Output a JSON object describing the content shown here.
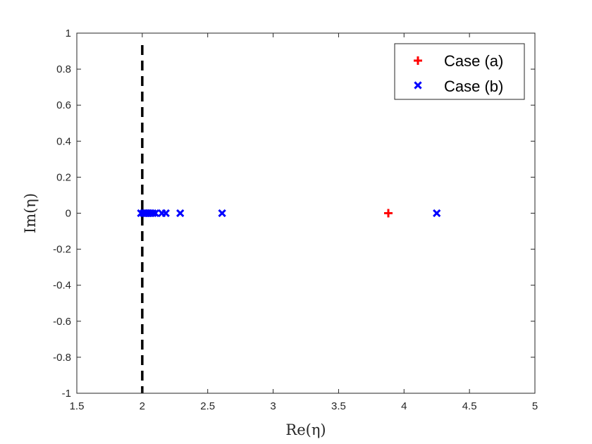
{
  "chart_data": {
    "type": "scatter",
    "xlabel": "Re(η)",
    "ylabel": "Im(η)",
    "xlim": [
      1.5,
      5
    ],
    "ylim": [
      -1,
      1
    ],
    "x_ticks": [
      "1.5",
      "2",
      "2.5",
      "3",
      "3.5",
      "4",
      "4.5",
      "5"
    ],
    "y_ticks": [
      "-1",
      "-0.8",
      "-0.6",
      "-0.4",
      "-0.2",
      "0",
      "0.2",
      "0.4",
      "0.6",
      "0.8",
      "1"
    ],
    "reference_line": {
      "x": 2,
      "style": "dashed",
      "color": "#000000"
    },
    "grid": false,
    "legend_position": "top-right",
    "series": [
      {
        "name": "Case (a)",
        "marker": "plus",
        "color": "#ff0000",
        "points": [
          {
            "x": 3.88,
            "y": 0
          }
        ]
      },
      {
        "name": "Case (b)",
        "marker": "cross",
        "color": "#0000ff",
        "points": [
          {
            "x": 1.99,
            "y": 0
          },
          {
            "x": 2.01,
            "y": 0
          },
          {
            "x": 2.02,
            "y": 0
          },
          {
            "x": 2.03,
            "y": 0
          },
          {
            "x": 2.04,
            "y": 0
          },
          {
            "x": 2.05,
            "y": 0
          },
          {
            "x": 2.065,
            "y": 0
          },
          {
            "x": 2.08,
            "y": 0
          },
          {
            "x": 2.1,
            "y": 0
          },
          {
            "x": 2.15,
            "y": 0
          },
          {
            "x": 2.18,
            "y": 0
          },
          {
            "x": 2.29,
            "y": 0
          },
          {
            "x": 2.61,
            "y": 0
          },
          {
            "x": 4.25,
            "y": 0
          }
        ]
      }
    ]
  }
}
